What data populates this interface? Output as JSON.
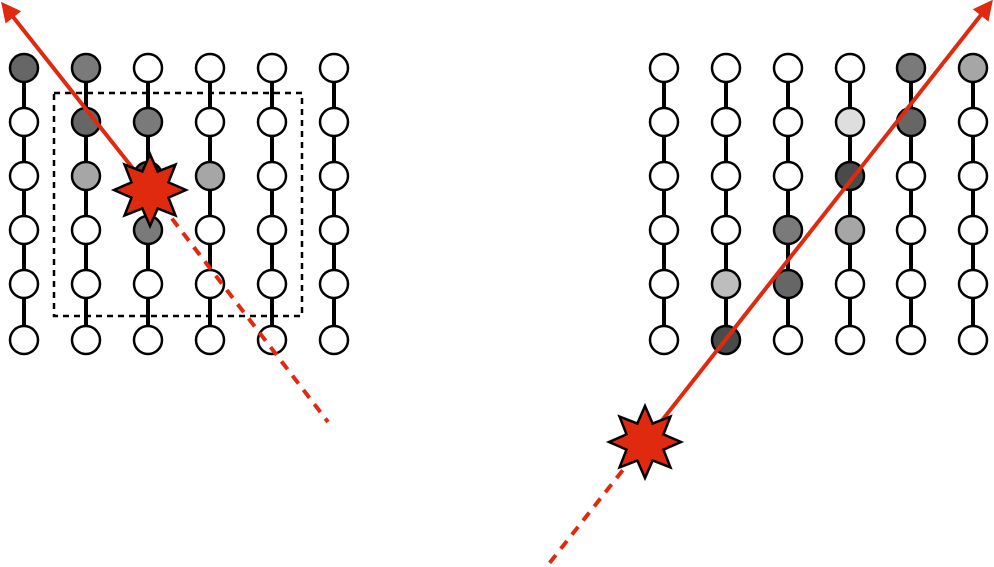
{
  "colors": {
    "background": "#ffffff",
    "string": "#000000",
    "node_outline": "#000000",
    "node_fill": "#ffffff",
    "track": "#e02a0f",
    "star_fill": "#e02a0f",
    "star_outline": "#000000",
    "box_outline": "#000000",
    "hit_levels": {
      "very_dark": "#4a4a4a",
      "dark": "#666666",
      "medium_dark": "#7a7a7a",
      "medium": "#a6a6a6",
      "light": "#bdbdbd",
      "very_light": "#dedede"
    }
  },
  "panels": [
    {
      "name": "left",
      "strings": 6,
      "nodes_per_string": 6,
      "track": {
        "direction": "up-left",
        "has_containment_box": true,
        "vertex": "inside-array"
      },
      "hits": [
        {
          "string": 1,
          "node": 1,
          "level": "dark"
        },
        {
          "string": 2,
          "node": 1,
          "level": "medium_dark"
        },
        {
          "string": 2,
          "node": 2,
          "level": "dark"
        },
        {
          "string": 3,
          "node": 2,
          "level": "medium_dark"
        },
        {
          "string": 2,
          "node": 3,
          "level": "medium"
        },
        {
          "string": 3,
          "node": 3,
          "level": "very_dark"
        },
        {
          "string": 4,
          "node": 3,
          "level": "medium"
        },
        {
          "string": 3,
          "node": 4,
          "level": "medium_dark"
        }
      ]
    },
    {
      "name": "right",
      "strings": 6,
      "nodes_per_string": 6,
      "track": {
        "direction": "up-right",
        "has_containment_box": false,
        "vertex": "outside-array"
      },
      "hits": [
        {
          "string": 5,
          "node": 1,
          "level": "medium_dark"
        },
        {
          "string": 6,
          "node": 1,
          "level": "medium"
        },
        {
          "string": 4,
          "node": 2,
          "level": "very_light"
        },
        {
          "string": 5,
          "node": 2,
          "level": "dark"
        },
        {
          "string": 4,
          "node": 3,
          "level": "very_dark"
        },
        {
          "string": 3,
          "node": 4,
          "level": "medium_dark"
        },
        {
          "string": 4,
          "node": 4,
          "level": "medium"
        },
        {
          "string": 2,
          "node": 5,
          "level": "light"
        },
        {
          "string": 3,
          "node": 5,
          "level": "dark"
        },
        {
          "string": 2,
          "node": 6,
          "level": "very_dark"
        }
      ]
    }
  ]
}
